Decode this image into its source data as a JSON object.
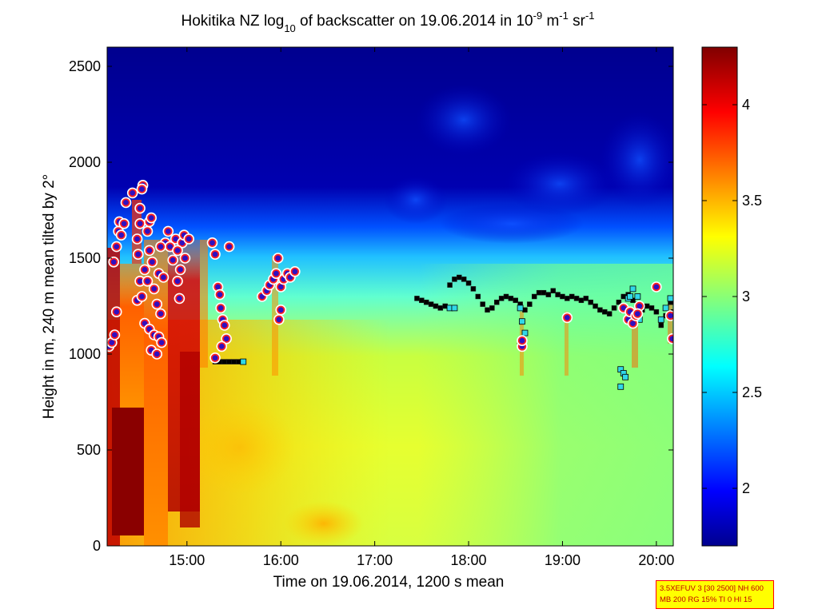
{
  "chart_data": {
    "type": "heatmap",
    "title": {
      "prefix": "Hokitika NZ log",
      "sub": "10",
      "middle": " of backscatter on 19.06.2014 in 10",
      "sup1": "-9",
      "unit1": " m",
      "sup2": "-1",
      "unit2": " sr",
      "sup3": "-1"
    },
    "xlabel": "Time on 19.06.2014, 1200 s mean",
    "ylabel": "Height in m, 240 m mean tilted by 2°",
    "xlim": [
      14.15,
      20.18
    ],
    "ylim": [
      0,
      2600
    ],
    "x_ticks": [
      {
        "value": 15,
        "label": "15:00"
      },
      {
        "value": 16,
        "label": "16:00"
      },
      {
        "value": 17,
        "label": "17:00"
      },
      {
        "value": 18,
        "label": "18:00"
      },
      {
        "value": 19,
        "label": "19:00"
      },
      {
        "value": 20,
        "label": "20:00"
      }
    ],
    "y_ticks": [
      0,
      500,
      1000,
      1500,
      2000,
      2500
    ],
    "colorbar": {
      "min": 1.7,
      "max": 4.3,
      "ticks": [
        2,
        2.5,
        3,
        3.5,
        4
      ],
      "colormap": "jet"
    },
    "cloud_base_points": [
      [
        14.17,
        1040
      ],
      [
        14.2,
        1060
      ],
      [
        14.23,
        1100
      ],
      [
        14.25,
        1220
      ],
      [
        14.22,
        1480
      ],
      [
        14.25,
        1560
      ],
      [
        14.27,
        1640
      ],
      [
        14.28,
        1690
      ],
      [
        14.3,
        1620
      ],
      [
        14.33,
        1680
      ],
      [
        14.35,
        1790
      ],
      [
        14.42,
        1840
      ],
      [
        14.47,
        1600
      ],
      [
        14.48,
        1520
      ],
      [
        14.5,
        1680
      ],
      [
        14.5,
        1760
      ],
      [
        14.53,
        1880
      ],
      [
        14.52,
        1860
      ],
      [
        14.58,
        1640
      ],
      [
        14.6,
        1690
      ],
      [
        14.62,
        1710
      ],
      [
        14.6,
        1540
      ],
      [
        14.63,
        1480
      ],
      [
        14.55,
        1440
      ],
      [
        14.5,
        1380
      ],
      [
        14.47,
        1280
      ],
      [
        14.52,
        1300
      ],
      [
        14.58,
        1380
      ],
      [
        14.65,
        1340
      ],
      [
        14.68,
        1260
      ],
      [
        14.72,
        1210
      ],
      [
        14.55,
        1160
      ],
      [
        14.6,
        1130
      ],
      [
        14.65,
        1100
      ],
      [
        14.7,
        1090
      ],
      [
        14.73,
        1060
      ],
      [
        14.62,
        1020
      ],
      [
        14.68,
        1000
      ],
      [
        14.77,
        1580
      ],
      [
        14.8,
        1640
      ],
      [
        14.82,
        1560
      ],
      [
        14.85,
        1490
      ],
      [
        14.88,
        1600
      ],
      [
        14.9,
        1380
      ],
      [
        14.92,
        1290
      ],
      [
        14.95,
        1580
      ],
      [
        14.97,
        1620
      ],
      [
        14.9,
        1540
      ],
      [
        14.93,
        1440
      ],
      [
        14.98,
        1500
      ],
      [
        15.02,
        1600
      ],
      [
        14.72,
        1560
      ],
      [
        14.7,
        1420
      ],
      [
        14.75,
        1400
      ],
      [
        15.27,
        1580
      ],
      [
        15.3,
        1520
      ],
      [
        15.33,
        1350
      ],
      [
        15.35,
        1310
      ],
      [
        15.36,
        1240
      ],
      [
        15.38,
        1180
      ],
      [
        15.4,
        1150
      ],
      [
        15.42,
        1080
      ],
      [
        15.37,
        1040
      ],
      [
        15.3,
        980
      ],
      [
        15.45,
        1560
      ],
      [
        15.8,
        1300
      ],
      [
        15.85,
        1330
      ],
      [
        15.88,
        1360
      ],
      [
        15.92,
        1390
      ],
      [
        15.95,
        1420
      ],
      [
        15.97,
        1500
      ],
      [
        16.0,
        1350
      ],
      [
        16.03,
        1390
      ],
      [
        16.07,
        1420
      ],
      [
        16.1,
        1400
      ],
      [
        16.15,
        1430
      ],
      [
        15.98,
        1180
      ],
      [
        16.0,
        1230
      ],
      [
        18.57,
        1040
      ],
      [
        18.57,
        1070
      ],
      [
        19.05,
        1190
      ],
      [
        19.65,
        1240
      ],
      [
        19.7,
        1180
      ],
      [
        19.72,
        1220
      ],
      [
        19.75,
        1160
      ],
      [
        19.78,
        1200
      ],
      [
        19.82,
        1250
      ],
      [
        20.0,
        1350
      ],
      [
        20.17,
        1080
      ],
      [
        20.15,
        1200
      ],
      [
        19.8,
        1210
      ]
    ],
    "cloud_top_line": [
      [
        17.45,
        1290
      ],
      [
        17.5,
        1280
      ],
      [
        17.55,
        1270
      ],
      [
        17.6,
        1260
      ],
      [
        17.65,
        1250
      ],
      [
        17.7,
        1240
      ],
      [
        17.75,
        1250
      ],
      [
        17.8,
        1360
      ],
      [
        17.85,
        1390
      ],
      [
        17.9,
        1400
      ],
      [
        17.95,
        1390
      ],
      [
        18.0,
        1370
      ],
      [
        18.05,
        1340
      ],
      [
        18.1,
        1300
      ],
      [
        18.15,
        1260
      ],
      [
        18.2,
        1230
      ],
      [
        18.25,
        1240
      ],
      [
        18.3,
        1270
      ],
      [
        18.35,
        1290
      ],
      [
        18.4,
        1300
      ],
      [
        18.45,
        1290
      ],
      [
        18.5,
        1280
      ],
      [
        18.55,
        1260
      ],
      [
        18.6,
        1230
      ],
      [
        18.65,
        1260
      ],
      [
        18.7,
        1300
      ],
      [
        18.75,
        1320
      ],
      [
        18.8,
        1320
      ],
      [
        18.85,
        1310
      ],
      [
        18.9,
        1330
      ],
      [
        18.95,
        1310
      ],
      [
        19.0,
        1300
      ],
      [
        19.05,
        1290
      ],
      [
        19.1,
        1300
      ],
      [
        19.15,
        1290
      ],
      [
        19.2,
        1280
      ],
      [
        19.25,
        1290
      ],
      [
        19.3,
        1270
      ],
      [
        19.35,
        1250
      ],
      [
        19.4,
        1230
      ],
      [
        19.45,
        1220
      ],
      [
        19.5,
        1210
      ],
      [
        19.55,
        1240
      ],
      [
        19.6,
        1270
      ],
      [
        19.65,
        1300
      ],
      [
        19.7,
        1310
      ],
      [
        19.75,
        1280
      ],
      [
        19.8,
        1260
      ],
      [
        19.85,
        1230
      ],
      [
        19.9,
        1250
      ],
      [
        19.95,
        1240
      ],
      [
        20.0,
        1220
      ],
      [
        20.05,
        1150
      ],
      [
        20.1,
        1200
      ],
      [
        20.15,
        1270
      ],
      [
        20.18,
        1220
      ],
      [
        15.3,
        960
      ],
      [
        15.35,
        960
      ],
      [
        15.4,
        960
      ],
      [
        15.45,
        960
      ],
      [
        15.5,
        960
      ],
      [
        15.55,
        960
      ]
    ],
    "cyan_markers": [
      [
        15.6,
        960
      ],
      [
        17.8,
        1240
      ],
      [
        17.85,
        1240
      ],
      [
        18.55,
        1240
      ],
      [
        18.57,
        1170
      ],
      [
        18.6,
        1110
      ],
      [
        18.55,
        1050
      ],
      [
        19.05,
        1190
      ],
      [
        19.62,
        920
      ],
      [
        19.65,
        900
      ],
      [
        19.67,
        880
      ],
      [
        19.62,
        830
      ],
      [
        19.7,
        1290
      ],
      [
        19.72,
        1300
      ],
      [
        19.75,
        1340
      ],
      [
        19.8,
        1300
      ],
      [
        19.82,
        1180
      ],
      [
        19.65,
        1230
      ],
      [
        20.05,
        1180
      ],
      [
        20.1,
        1240
      ],
      [
        20.15,
        1290
      ]
    ]
  },
  "info_box": {
    "line1": "3.5XEFUV 3 [30 2500] NH 600",
    "line2": "MB 200 RG 15% TI 0 HI 15"
  }
}
